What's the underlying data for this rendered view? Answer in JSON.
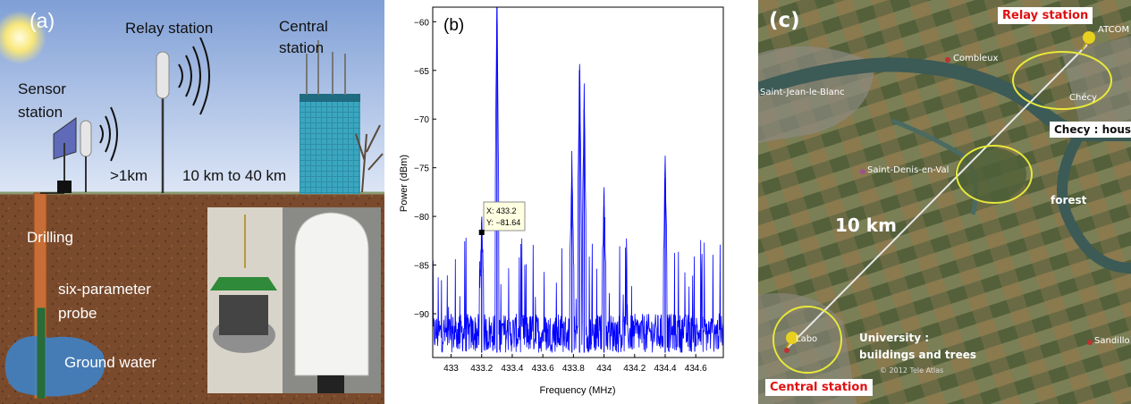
{
  "panel_a": {
    "tag": "(a)",
    "relay_station": "Relay station",
    "central_station_1": "Central",
    "central_station_2": "station",
    "sensor_station_1": "Sensor",
    "sensor_station_2": "station",
    "dist_short": ">1km",
    "dist_long": "10 km to 40 km",
    "drilling": "Drilling",
    "probe_1": "six-parameter",
    "probe_2": "probe",
    "ground_water": "Ground water",
    "colors": {
      "sky_top": "#7f9fd6",
      "sky_bottom": "#d6e2f5",
      "soil": "#7a4a2c",
      "building": "#2f8ea6"
    }
  },
  "panel_b": {
    "tag": "(b)",
    "datatip_x": "X: 433.2",
    "datatip_y": "Y: −81.64",
    "chart_data": {
      "type": "line",
      "xlabel": "Frequency (MHz)",
      "ylabel": "Power (dBm)",
      "xlim": [
        432.88,
        434.78
      ],
      "ylim": [
        -94.5,
        -58.5
      ],
      "x_ticks": [
        433,
        433.2,
        433.4,
        433.6,
        433.8,
        434,
        434.2,
        434.4,
        434.6
      ],
      "x_tick_labels": [
        "433",
        "433.2",
        "433.4",
        "433.6",
        "433.8",
        "434",
        "434.2",
        "434.4",
        "434.6"
      ],
      "y_ticks": [
        -60,
        -65,
        -70,
        -75,
        -80,
        -85,
        -90
      ],
      "y_tick_labels": [
        "−60",
        "−65",
        "−70",
        "−75",
        "−80",
        "−85",
        "−90"
      ],
      "noise_floor": -94,
      "peaks": [
        {
          "x": 433.2,
          "y": -81.64
        },
        {
          "x": 433.3,
          "y": -58.5
        },
        {
          "x": 433.84,
          "y": -65
        },
        {
          "x": 433.87,
          "y": -69
        },
        {
          "x": 433.79,
          "y": -76
        },
        {
          "x": 434.4,
          "y": -76
        },
        {
          "x": 434.0,
          "y": -79
        }
      ],
      "marker": {
        "x": 433.2,
        "y": -81.64
      },
      "color": "#0000ff"
    }
  },
  "panel_c": {
    "tag": "(c)",
    "relay_station": "Relay station",
    "central_station": "Central station",
    "checy_houses": "Checy : houses",
    "forest": "forest",
    "university_1": "University :",
    "university_2": "buildings and trees",
    "distance": "10 km",
    "places": {
      "combleux": "Combleux",
      "saint_jean": "Saint-Jean-le-Blanc",
      "saint_denis": "Saint-Denis-en-Val",
      "checy": "Chécy",
      "labo": "Labo",
      "sandillon": "Sandillo",
      "atcom": "ATCOM",
      "copyright": "© 2012 Tele Atlas"
    },
    "colors": {
      "highlight": "#e8e83a",
      "red": "#e01010"
    }
  }
}
